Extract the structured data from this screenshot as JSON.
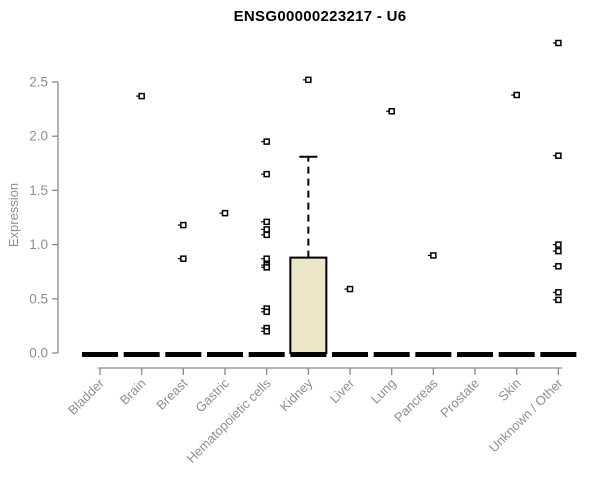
{
  "chart_data": {
    "type": "boxplot",
    "title": "ENSG00000223217 - U6",
    "ylabel": "Expression",
    "xlabel": "",
    "ylim": [
      0,
      2.9
    ],
    "yticks": [
      "0.0",
      "0.5",
      "1.0",
      "1.5",
      "2.0",
      "2.5"
    ],
    "ytick_values": [
      0.0,
      0.5,
      1.0,
      1.5,
      2.0,
      2.5
    ],
    "grid": false,
    "legend_position": "none",
    "categories": [
      "Bladder",
      "Brain",
      "Breast",
      "Gastric",
      "Hematopoietic cells",
      "Kidney",
      "Liver",
      "Lung",
      "Pancreas",
      "Prostate",
      "Skin",
      "Unknown / Other"
    ],
    "boxes": [
      {
        "category": "Bladder",
        "q1": 0,
        "median": 0,
        "q3": 0,
        "whisker_low": 0,
        "whisker_high": 0,
        "outliers": []
      },
      {
        "category": "Brain",
        "q1": 0,
        "median": 0,
        "q3": 0,
        "whisker_low": 0,
        "whisker_high": 0,
        "outliers": [
          2.37
        ]
      },
      {
        "category": "Breast",
        "q1": 0,
        "median": 0,
        "q3": 0,
        "whisker_low": 0,
        "whisker_high": 0,
        "outliers": [
          1.18,
          0.87
        ]
      },
      {
        "category": "Gastric",
        "q1": 0,
        "median": 0,
        "q3": 0,
        "whisker_low": 0,
        "whisker_high": 0,
        "outliers": [
          1.29
        ]
      },
      {
        "category": "Hematopoietic cells",
        "q1": 0,
        "median": 0,
        "q3": 0,
        "whisker_low": 0,
        "whisker_high": 0,
        "outliers": [
          1.95,
          1.65,
          1.21,
          1.14,
          1.09,
          0.87,
          0.81,
          0.79,
          0.41,
          0.38,
          0.23,
          0.2
        ]
      },
      {
        "category": "Kidney",
        "q1": 0,
        "median": 0,
        "q3": 0.88,
        "whisker_low": 0,
        "whisker_high": 1.81,
        "outliers": [
          2.52
        ]
      },
      {
        "category": "Liver",
        "q1": 0,
        "median": 0,
        "q3": 0,
        "whisker_low": 0,
        "whisker_high": 0,
        "outliers": [
          0.59
        ]
      },
      {
        "category": "Lung",
        "q1": 0,
        "median": 0,
        "q3": 0,
        "whisker_low": 0,
        "whisker_high": 0,
        "outliers": [
          2.23
        ]
      },
      {
        "category": "Pancreas",
        "q1": 0,
        "median": 0,
        "q3": 0,
        "whisker_low": 0,
        "whisker_high": 0,
        "outliers": [
          0.9
        ]
      },
      {
        "category": "Prostate",
        "q1": 0,
        "median": 0,
        "q3": 0,
        "whisker_low": 0,
        "whisker_high": 0,
        "outliers": []
      },
      {
        "category": "Skin",
        "q1": 0,
        "median": 0,
        "q3": 0,
        "whisker_low": 0,
        "whisker_high": 0,
        "outliers": [
          2.38
        ]
      },
      {
        "category": "Unknown / Other",
        "q1": 0,
        "median": 0,
        "q3": 0,
        "whisker_low": 0,
        "whisker_high": 0,
        "outliers": [
          2.86,
          1.82,
          1.0,
          0.94,
          0.8,
          0.56,
          0.49
        ]
      }
    ],
    "colors": {
      "box_fill": "#ede7c9",
      "box_stroke": "#000000",
      "median_color": "#000000",
      "outlier_color": "#000000",
      "axis_color": "#8a8a8a",
      "tick_label_color": "#8f8f8f",
      "title_color": "#000000"
    }
  }
}
